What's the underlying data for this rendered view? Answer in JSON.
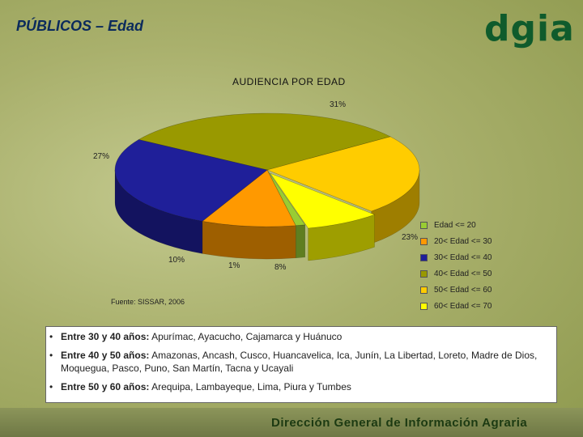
{
  "slide": {
    "title": "PÚBLICOS – Edad",
    "logo": "dgia",
    "source": "Fuente: SISSAR, 2006",
    "footer": "Dirección General de Información Agraria"
  },
  "chart_data": {
    "type": "pie",
    "title": "AUDIENCIA POR EDAD",
    "slices": [
      {
        "label": "Edad <= 20",
        "value": 1,
        "display": "1%",
        "color": "#99cc33"
      },
      {
        "label": "20< Edad <= 30",
        "value": 10,
        "display": "10%",
        "color": "#ff9900"
      },
      {
        "label": "30< Edad <= 40",
        "value": 27,
        "display": "27%",
        "color": "#1f1f99"
      },
      {
        "label": "40< Edad <= 50",
        "value": 31,
        "display": "31%",
        "color": "#999900"
      },
      {
        "label": "50< Edad <= 60",
        "value": 23,
        "display": "23%",
        "color": "#ffcc00"
      },
      {
        "label": "60< Edad <= 70",
        "value": 8,
        "display": "8%",
        "color": "#ffff00"
      }
    ]
  },
  "bullets": [
    {
      "head": "Entre 30 y 40 años:",
      "body": " Apurímac, Ayacucho, Cajamarca y Huánuco"
    },
    {
      "head": "Entre 40 y 50 años:",
      "body": " Amazonas, Ancash, Cusco, Huancavelica, Ica, Junín, La Libertad, Loreto, Madre de Dios, Moquegua, Pasco, Puno, San Martín, Tacna y Ucayali"
    },
    {
      "head": "Entre 50 y 60 años:",
      "body": " Arequipa, Lambayeque, Lima, Piura y Tumbes"
    }
  ]
}
